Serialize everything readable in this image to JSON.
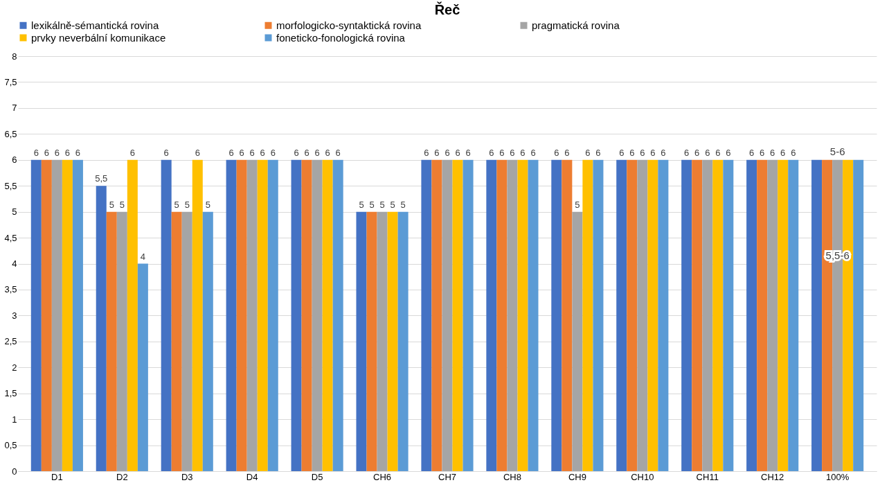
{
  "chart_data": {
    "type": "bar",
    "title": "Řeč",
    "categories": [
      "D1",
      "D2",
      "D3",
      "D4",
      "D5",
      "CH6",
      "CH7",
      "CH8",
      "CH9",
      "CH10",
      "CH11",
      "CH12",
      "100%"
    ],
    "series": [
      {
        "name": "lexikálně-sémantická rovina",
        "color": "#4472c4",
        "values": [
          6,
          5.5,
          6,
          6,
          6,
          5,
          6,
          6,
          6,
          6,
          6,
          6,
          6
        ],
        "value_labels": [
          "6",
          "5,5",
          "6",
          "6",
          "6",
          "5",
          "6",
          "6",
          "6",
          "6",
          "6",
          "6",
          null
        ]
      },
      {
        "name": "morfologicko-syntaktická rovina",
        "color": "#ed7d31",
        "values": [
          6,
          5,
          5,
          6,
          6,
          5,
          6,
          6,
          6,
          6,
          6,
          6,
          6
        ],
        "value_labels": [
          "6",
          "5",
          "5",
          "6",
          "6",
          "5",
          "6",
          "6",
          "6",
          "6",
          "6",
          "6",
          null
        ]
      },
      {
        "name": "pragmatická rovina",
        "color": "#a5a5a5",
        "values": [
          6,
          5,
          5,
          6,
          6,
          5,
          6,
          6,
          5,
          6,
          6,
          6,
          6
        ],
        "value_labels": [
          "6",
          "5",
          "5",
          "6",
          "6",
          "5",
          "6",
          "6",
          "5",
          "6",
          "6",
          "6",
          null
        ]
      },
      {
        "name": "prvky neverbální komunikace",
        "color": "#ffc000",
        "values": [
          6,
          6,
          6,
          6,
          6,
          5,
          6,
          6,
          6,
          6,
          6,
          6,
          6
        ],
        "value_labels": [
          "6",
          "6",
          "6",
          "6",
          "6",
          "5",
          "6",
          "6",
          "6",
          "6",
          "6",
          "6",
          null
        ]
      },
      {
        "name": "foneticko-fonologická rovina",
        "color": "#5b9bd5",
        "values": [
          6,
          4,
          5,
          6,
          6,
          5,
          6,
          6,
          6,
          6,
          6,
          6,
          6
        ],
        "value_labels": [
          "6",
          "4",
          "5",
          "6",
          "6",
          "5",
          "6",
          "6",
          "6",
          "6",
          "6",
          "6",
          null
        ]
      }
    ],
    "annotations": [
      "5-6",
      "5,5-6"
    ],
    "ylim": [
      0,
      8
    ],
    "yticks": [
      0,
      {
        "value": 0.5,
        "label": "0,5"
      },
      1,
      {
        "value": 1.5,
        "label": "1,5"
      },
      2,
      {
        "value": 2.5,
        "label": "2,5"
      },
      3,
      {
        "value": 3.5,
        "label": "3,5"
      },
      4,
      {
        "value": 4.5,
        "label": "4,5"
      },
      5,
      {
        "value": 5.5,
        "label": "5,5"
      },
      6,
      {
        "value": 6.5,
        "label": "6,5"
      },
      7,
      {
        "value": 7.5,
        "label": "7,5"
      },
      8
    ],
    "grid": "y",
    "legend": "top"
  }
}
